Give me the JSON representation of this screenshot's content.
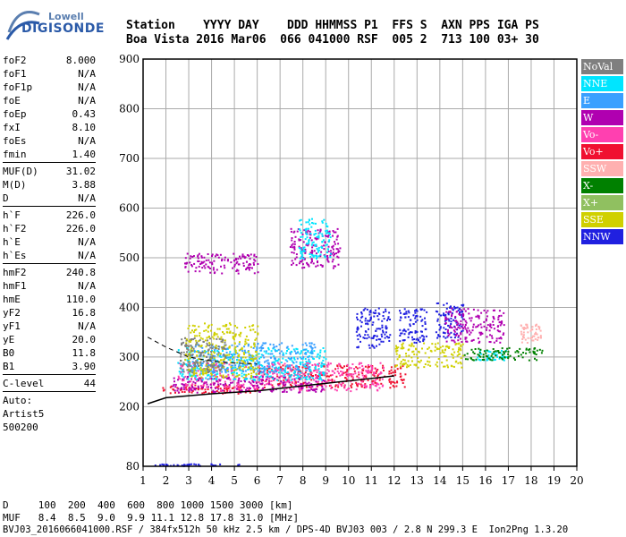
{
  "logo": {
    "top": "Lowell",
    "bottom": "DIGISONDE"
  },
  "header": {
    "line1": "Station    YYYY DAY    DDD HHMMSS P1  FFS S  AXN PPS IGA PS",
    "line2": "Boa Vista 2016 Mar06  066 041000 RSF  005 2  713 100 03+ 30"
  },
  "params": [
    {
      "k": "foF2",
      "v": "8.000"
    },
    {
      "k": "foF1",
      "v": "N/A"
    },
    {
      "k": "foF1p",
      "v": "N/A"
    },
    {
      "k": "foE",
      "v": "N/A"
    },
    {
      "k": "foEp",
      "v": "0.43"
    },
    {
      "k": "fxI",
      "v": "8.10"
    },
    {
      "k": "foEs",
      "v": "N/A"
    },
    {
      "k": "fmin",
      "v": "1.40"
    },
    {
      "sep": true
    },
    {
      "k": "MUF(D)",
      "v": "31.02"
    },
    {
      "k": "M(D)",
      "v": "3.88"
    },
    {
      "k": "D",
      "v": "N/A"
    },
    {
      "sep": true
    },
    {
      "k": "h`F",
      "v": "226.0"
    },
    {
      "k": "h`F2",
      "v": "226.0"
    },
    {
      "k": "h`E",
      "v": "N/A"
    },
    {
      "k": "h`Es",
      "v": "N/A"
    },
    {
      "sep": true
    },
    {
      "k": "hmF2",
      "v": "240.8"
    },
    {
      "k": "hmF1",
      "v": "N/A"
    },
    {
      "k": "hmE",
      "v": "110.0"
    },
    {
      "k": "yF2",
      "v": "16.8"
    },
    {
      "k": "yF1",
      "v": "N/A"
    },
    {
      "k": "yE",
      "v": "20.0"
    },
    {
      "k": "B0",
      "v": "11.8"
    },
    {
      "k": "B1",
      "v": "3.90"
    },
    {
      "sep": true
    },
    {
      "k": "C-level",
      "v": "44"
    },
    {
      "sep": true
    },
    {
      "t": "Auto:"
    },
    {
      "t": "Artist5"
    },
    {
      "t": "500200"
    }
  ],
  "legend": [
    {
      "label": "NoVal",
      "color": "#7f7f7f"
    },
    {
      "label": "NNE",
      "color": "#00e5ff"
    },
    {
      "label": "E",
      "color": "#3aa0ff"
    },
    {
      "label": "W",
      "color": "#b000b0"
    },
    {
      "label": "Vo-",
      "color": "#ff40b0"
    },
    {
      "label": "Vo+",
      "color": "#f01030"
    },
    {
      "label": "SSW",
      "color": "#ffb0b0"
    },
    {
      "label": "X-",
      "color": "#008000"
    },
    {
      "label": "X+",
      "color": "#90c060"
    },
    {
      "label": "SSE",
      "color": "#d0d000"
    },
    {
      "label": "NNW",
      "color": "#2020e0"
    }
  ],
  "footer": {
    "d_line": "D     100  200  400  600  800 1000 1500 3000 [km]",
    "muf_line": "MUF   8.4  8.5  9.0  9.9 11.1 12.8 17.8 31.0 [MHz]",
    "file_line": "BVJ03_2016066041000.RSF / 384fx512h 50 kHz 2.5 km / DPS-4D BVJ03 003 / 2.8 N 299.3 E  Ion2Png 1.3.20"
  },
  "chart_data": {
    "type": "scatter",
    "xlabel": "",
    "ylabel": "",
    "xlim": [
      1,
      20
    ],
    "ylim": [
      80,
      900
    ],
    "x_ticks": [
      1,
      2,
      3,
      4,
      5,
      6,
      7,
      8,
      9,
      10,
      11,
      12,
      13,
      14,
      15,
      16,
      17,
      18,
      19,
      20
    ],
    "y_ticks": [
      80,
      200,
      300,
      400,
      500,
      600,
      700,
      800,
      900
    ],
    "grid": true,
    "profile_line": {
      "x": [
        1.2,
        2,
        4,
        6,
        8,
        10,
        12
      ],
      "y": [
        206,
        218,
        226,
        232,
        242,
        252,
        262
      ]
    },
    "dashed_line": {
      "x": [
        1.2,
        2,
        3,
        4,
        5,
        6
      ],
      "y": [
        340,
        320,
        300,
        292,
        288,
        286
      ]
    },
    "clusters": [
      {
        "series": "Vo+",
        "x": [
          1.8,
          6.0
        ],
        "y": [
          228,
          245
        ]
      },
      {
        "series": "Vo+",
        "x": [
          6.0,
          12.5
        ],
        "y": [
          240,
          285
        ]
      },
      {
        "series": "Vo-",
        "x": [
          2.5,
          11.5
        ],
        "y": [
          232,
          290
        ]
      },
      {
        "series": "W",
        "x": [
          2.2,
          9.0
        ],
        "y": [
          230,
          262
        ]
      },
      {
        "series": "NNE",
        "x": [
          2.5,
          9.0
        ],
        "y": [
          255,
          320
        ]
      },
      {
        "series": "E",
        "x": [
          3.0,
          8.5
        ],
        "y": [
          270,
          330
        ]
      },
      {
        "series": "SSE",
        "x": [
          2.8,
          6.0
        ],
        "y": [
          260,
          370
        ]
      },
      {
        "series": "NoVal",
        "x": [
          2.6,
          4.6
        ],
        "y": [
          270,
          340
        ]
      },
      {
        "series": "W",
        "x": [
          2.8,
          6.0
        ],
        "y": [
          470,
          510
        ]
      },
      {
        "series": "W",
        "x": [
          7.4,
          9.6
        ],
        "y": [
          480,
          560
        ]
      },
      {
        "series": "NNE",
        "x": [
          7.8,
          9.2
        ],
        "y": [
          500,
          580
        ]
      },
      {
        "series": "NNW",
        "x": [
          10.3,
          11.8
        ],
        "y": [
          320,
          400
        ]
      },
      {
        "series": "NNW",
        "x": [
          12.2,
          13.4
        ],
        "y": [
          330,
          400
        ]
      },
      {
        "series": "NNW",
        "x": [
          13.8,
          15.0
        ],
        "y": [
          340,
          410
        ]
      },
      {
        "series": "W",
        "x": [
          14.2,
          16.8
        ],
        "y": [
          330,
          400
        ]
      },
      {
        "series": "SSE",
        "x": [
          12.0,
          15.0
        ],
        "y": [
          280,
          330
        ]
      },
      {
        "series": "NNE",
        "x": [
          15.5,
          17.0
        ],
        "y": [
          295,
          315
        ]
      },
      {
        "series": "X-",
        "x": [
          15.0,
          18.5
        ],
        "y": [
          295,
          320
        ]
      },
      {
        "series": "SSW",
        "x": [
          17.5,
          18.4
        ],
        "y": [
          330,
          370
        ]
      },
      {
        "series": "NNW",
        "x": [
          1.5,
          5.5
        ],
        "y": [
          82,
          86
        ]
      }
    ]
  }
}
